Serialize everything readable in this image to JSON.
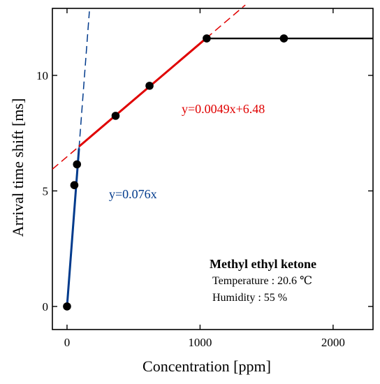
{
  "chart_data": {
    "type": "scatter",
    "title": "",
    "xlabel": "Concentration [ppm]",
    "ylabel": "Arrival time shift [ms]",
    "xlim": [
      -110,
      2300
    ],
    "ylim": [
      -1.0,
      12.9
    ],
    "xticks": [
      0,
      1000,
      2000
    ],
    "yticks": [
      0,
      5,
      10
    ],
    "grid": false,
    "series": [
      {
        "points": [
          {
            "x": 0,
            "y": 0.0
          },
          {
            "x": 55,
            "y": 5.25
          },
          {
            "x": 75,
            "y": 6.15
          },
          {
            "x": 365,
            "y": 8.25
          },
          {
            "x": 620,
            "y": 9.55
          },
          {
            "x": 1050,
            "y": 11.6
          },
          {
            "x": 1630,
            "y": 11.6
          }
        ]
      }
    ],
    "fits": [
      {
        "label": "y=0.076x",
        "slope": 0.076,
        "intercept": 0,
        "solid_range": [
          0,
          90
        ],
        "dashed_range": [
          90,
          168
        ],
        "color": "#003a8c"
      },
      {
        "label": "y=0.0049x+6.48",
        "slope": 0.0049,
        "intercept": 6.48,
        "solid_range": [
          90,
          1050
        ],
        "dashed_range": [
          -110,
          1340
        ],
        "color": "#e00000"
      }
    ],
    "plateau": {
      "y": 11.6,
      "x_range": [
        1050,
        2300
      ],
      "color": "#000000"
    },
    "annotation": {
      "compound": "Methyl ethyl ketone",
      "temperature": "Temperature : 20.6 ℃",
      "humidity": "Humidity : 55 %"
    }
  }
}
